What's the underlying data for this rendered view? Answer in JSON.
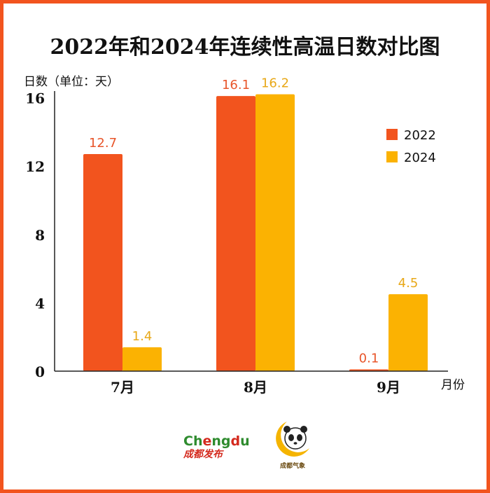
{
  "chart_data": {
    "type": "bar",
    "title": "2022年和2024年连续性高温日数对比图",
    "ylabel": "日数（单位：天）",
    "xlabel": "月份",
    "categories": [
      "7月",
      "8月",
      "9月"
    ],
    "series": [
      {
        "name": "2022",
        "values": [
          12.7,
          16.1,
          0.1
        ],
        "color": "#f2541e"
      },
      {
        "name": "2024",
        "values": [
          1.4,
          16.2,
          4.5
        ],
        "color": "#fbb202"
      }
    ],
    "ylim": [
      0,
      16.8
    ],
    "yticks": [
      0,
      4,
      8,
      12,
      16
    ],
    "grid": false,
    "legend": "top-right",
    "label_colors": {
      "2022": "#e8552a",
      "2024": "#e8a818"
    }
  },
  "logos": {
    "chengdu_fabu_text_cn": "成都发布",
    "chengdu_qixiang_text": "成都气象",
    "chengdu_en": "Chengdu"
  },
  "colors": {
    "frame": "#f2541e"
  }
}
